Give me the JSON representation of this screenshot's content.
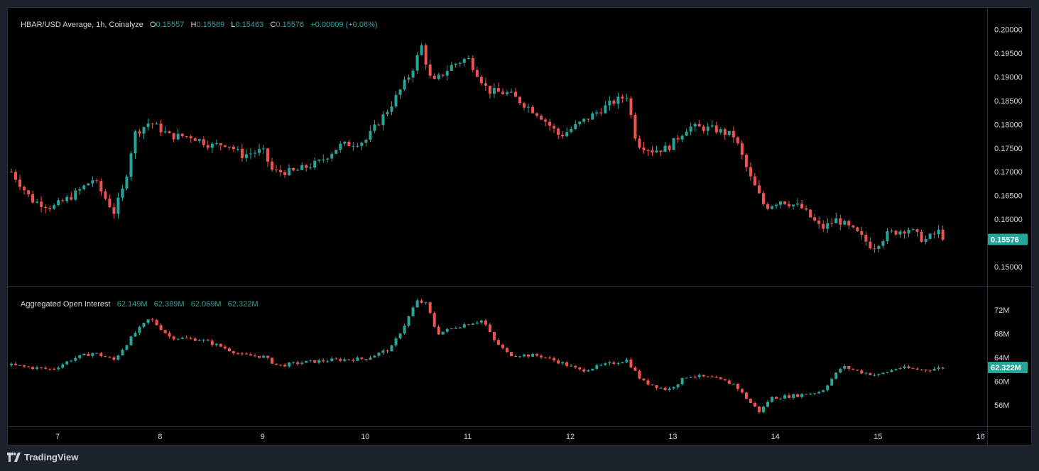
{
  "legend": {
    "title": "HBAR/USD Average, 1h, Coinalyze",
    "o_label": "O",
    "o": "0.15557",
    "h_label": "H",
    "h": "0.15589",
    "l_label": "L",
    "l": "0.15463",
    "c_label": "C",
    "c": "0.15576",
    "change": "+0.00009 (+0.06%)"
  },
  "oi_legend": {
    "title": "Aggregated Open Interest",
    "o": "62.149M",
    "h": "62.389M",
    "l": "62.069M",
    "c": "62.322M"
  },
  "footer": {
    "brand": "TradingView"
  },
  "colors": {
    "up": "#26a69a",
    "down": "#ef5350",
    "background": "#000000",
    "grid": "#2a2e39",
    "text": "#d1d4dc"
  },
  "chart_data": [
    {
      "type": "candlestick",
      "title": "HBAR/USD Average, 1h, Coinalyze",
      "x_ticks": [
        "7",
        "8",
        "9",
        "10",
        "11",
        "12",
        "13",
        "14",
        "15",
        "16"
      ],
      "y_ticks": [
        "0.20000",
        "0.19500",
        "0.19000",
        "0.18500",
        "0.18000",
        "0.17500",
        "0.17000",
        "0.16500",
        "0.16000",
        "0.15000"
      ],
      "ylim": [
        0.1475,
        0.2027
      ],
      "last_value_label": "0.15576",
      "interval": "1h",
      "close_path": [
        [
          "6.55",
          0.17
        ],
        [
          "6.75",
          0.164
        ],
        [
          "6.95",
          0.1625
        ],
        [
          "7.15",
          0.165
        ],
        [
          "7.35",
          0.1685
        ],
        [
          "7.55",
          0.1615
        ],
        [
          "7.65",
          0.167
        ],
        [
          "7.75",
          0.178
        ],
        [
          "7.90",
          0.1805
        ],
        [
          "8.10",
          0.1775
        ],
        [
          "8.30",
          0.1775
        ],
        [
          "8.50",
          0.1755
        ],
        [
          "8.65",
          0.176
        ],
        [
          "8.80",
          0.1735
        ],
        [
          "9.00",
          0.1745
        ],
        [
          "9.10",
          0.17
        ],
        [
          "9.30",
          0.17
        ],
        [
          "9.55",
          0.172
        ],
        [
          "9.75",
          0.1755
        ],
        [
          "10.00",
          0.1765
        ],
        [
          "10.25",
          0.184
        ],
        [
          "10.45",
          0.191
        ],
        [
          "10.55",
          0.1965
        ],
        [
          "10.65",
          0.1885
        ],
        [
          "10.85",
          0.1925
        ],
        [
          "11.00",
          0.194
        ],
        [
          "11.20",
          0.187
        ],
        [
          "11.40",
          0.1865
        ],
        [
          "11.70",
          0.182
        ],
        [
          "11.90",
          0.1775
        ],
        [
          "12.15",
          0.181
        ],
        [
          "12.40",
          0.1845
        ],
        [
          "12.55",
          0.186
        ],
        [
          "12.65",
          0.176
        ],
        [
          "12.80",
          0.1745
        ],
        [
          "12.95",
          0.175
        ],
        [
          "13.15",
          0.1795
        ],
        [
          "13.40",
          0.179
        ],
        [
          "13.60",
          0.1775
        ],
        [
          "13.75",
          0.169
        ],
        [
          "13.90",
          0.1625
        ],
        [
          "14.05",
          0.164
        ],
        [
          "14.25",
          0.1625
        ],
        [
          "14.45",
          0.158
        ],
        [
          "14.60",
          0.16
        ],
        [
          "14.80",
          0.157
        ],
        [
          "14.95",
          0.154
        ],
        [
          "15.10",
          0.157
        ],
        [
          "15.30",
          0.158
        ],
        [
          "15.45",
          0.1555
        ],
        [
          "15.60",
          0.1575
        ],
        [
          "15.65",
          0.15576
        ]
      ]
    },
    {
      "type": "candlestick",
      "title": "Aggregated Open Interest",
      "x_ticks": [
        "7",
        "8",
        "9",
        "10",
        "11",
        "12",
        "13",
        "14",
        "15",
        "16"
      ],
      "y_ticks": [
        "72M",
        "68M",
        "64M",
        "60M",
        "56M"
      ],
      "ylim": [
        52.5,
        75.5
      ],
      "y_unit": "M",
      "last_value_label": "62.322M",
      "close_path": [
        [
          "6.55",
          62.7
        ],
        [
          "6.75",
          62.3
        ],
        [
          "6.95",
          62.0
        ],
        [
          "7.15",
          63.8
        ],
        [
          "7.35",
          64.8
        ],
        [
          "7.55",
          63.6
        ],
        [
          "7.75",
          68.0
        ],
        [
          "7.90",
          70.6
        ],
        [
          "8.10",
          67.4
        ],
        [
          "8.40",
          67.0
        ],
        [
          "8.60",
          65.8
        ],
        [
          "8.80",
          64.4
        ],
        [
          "9.00",
          64.2
        ],
        [
          "9.15",
          62.6
        ],
        [
          "9.40",
          63.2
        ],
        [
          "9.70",
          63.6
        ],
        [
          "10.00",
          63.8
        ],
        [
          "10.25",
          65.5
        ],
        [
          "10.40",
          70.0
        ],
        [
          "10.50",
          73.5
        ],
        [
          "10.60",
          73.0
        ],
        [
          "10.70",
          68.0
        ],
        [
          "10.95",
          69.5
        ],
        [
          "11.15",
          70.3
        ],
        [
          "11.25",
          67.0
        ],
        [
          "11.40",
          64.5
        ],
        [
          "11.70",
          64.3
        ],
        [
          "11.90",
          63.2
        ],
        [
          "12.10",
          61.8
        ],
        [
          "12.40",
          63.0
        ],
        [
          "12.55",
          63.6
        ],
        [
          "12.70",
          60.0
        ],
        [
          "12.95",
          58.5
        ],
        [
          "13.15",
          61.0
        ],
        [
          "13.40",
          60.5
        ],
        [
          "13.60",
          59.5
        ],
        [
          "13.75",
          56.5
        ],
        [
          "13.85",
          54.8
        ],
        [
          "13.95",
          57.2
        ],
        [
          "14.20",
          57.6
        ],
        [
          "14.45",
          58.3
        ],
        [
          "14.65",
          62.5
        ],
        [
          "14.85",
          61.5
        ],
        [
          "15.00",
          61.0
        ],
        [
          "15.20",
          62.3
        ],
        [
          "15.45",
          61.9
        ],
        [
          "15.65",
          62.32
        ]
      ]
    }
  ]
}
